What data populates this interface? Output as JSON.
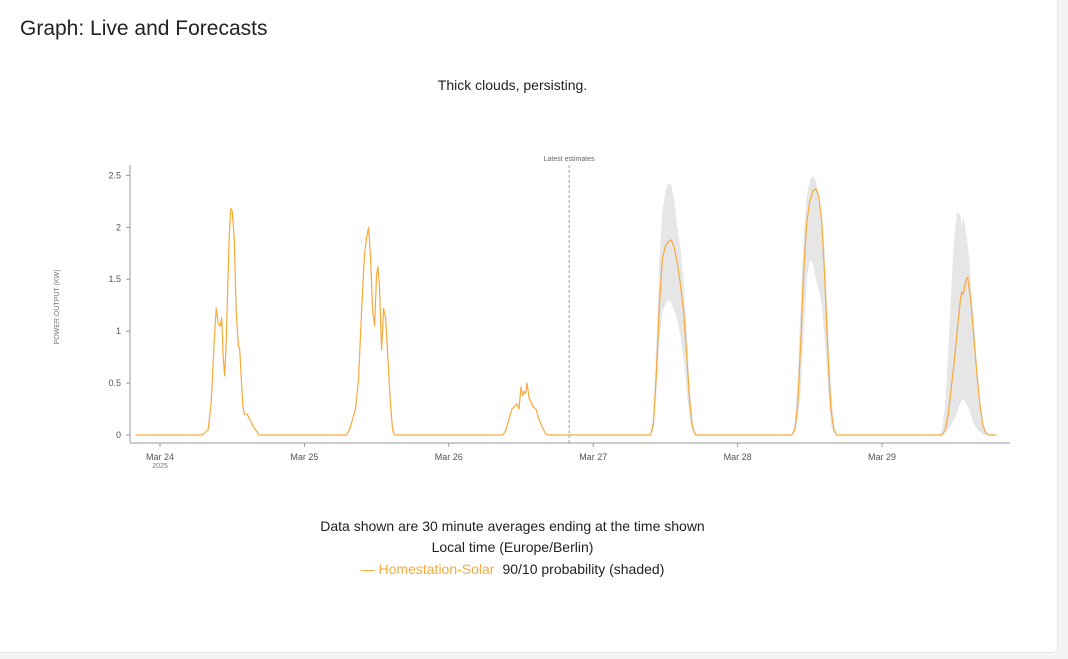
{
  "page": {
    "title": "Graph: Live and Forecasts"
  },
  "chart_data": {
    "type": "line",
    "subtitle": "Thick clouds, persisting.",
    "ylabel": "POWER OUTPUT (KW)",
    "ylim": [
      0,
      2.6
    ],
    "yticks": [
      {
        "value": 0,
        "label": "0"
      },
      {
        "value": 0.5,
        "label": "0.5"
      },
      {
        "value": 1,
        "label": "1"
      },
      {
        "value": 1.5,
        "label": "1.5"
      },
      {
        "value": 2,
        "label": "2"
      },
      {
        "value": 2.5,
        "label": "2.5"
      }
    ],
    "xlim": [
      "2025-03-23T20:00",
      "2025-03-29T23:59"
    ],
    "xticks": [
      {
        "date": "2025-03-24",
        "label": "Mar 24",
        "sublabel": "2025"
      },
      {
        "date": "2025-03-25",
        "label": "Mar 25"
      },
      {
        "date": "2025-03-26",
        "label": "Mar 26"
      },
      {
        "date": "2025-03-27",
        "label": "Mar 27"
      },
      {
        "date": "2025-03-28",
        "label": "Mar 28"
      },
      {
        "date": "2025-03-29",
        "label": "Mar 29"
      }
    ],
    "annotation": {
      "date": "2025-03-26T20:00",
      "label": "Latest estimates"
    },
    "grid": false,
    "series": [
      {
        "name": "Homestation-Solar",
        "color": "#f7a93a",
        "points": [
          [
            "2025-03-23T20:00",
            0
          ],
          [
            "2025-03-24T07:00",
            0
          ],
          [
            "2025-03-24T08:00",
            0.05
          ],
          [
            "2025-03-24T08:30",
            0.3
          ],
          [
            "2025-03-24T09:00",
            0.9
          ],
          [
            "2025-03-24T09:20",
            1.22
          ],
          [
            "2025-03-24T09:40",
            1.07
          ],
          [
            "2025-03-24T10:00",
            1.05
          ],
          [
            "2025-03-24T10:15",
            1.13
          ],
          [
            "2025-03-24T10:30",
            0.75
          ],
          [
            "2025-03-24T10:45",
            0.57
          ],
          [
            "2025-03-24T11:00",
            0.9
          ],
          [
            "2025-03-24T11:30",
            1.9
          ],
          [
            "2025-03-24T11:45",
            2.18
          ],
          [
            "2025-03-24T12:00",
            2.16
          ],
          [
            "2025-03-24T12:20",
            1.9
          ],
          [
            "2025-03-24T12:40",
            1.2
          ],
          [
            "2025-03-24T13:00",
            0.87
          ],
          [
            "2025-03-24T13:15",
            0.82
          ],
          [
            "2025-03-24T13:45",
            0.3
          ],
          [
            "2025-03-24T14:00",
            0.2
          ],
          [
            "2025-03-24T14:30",
            0.2
          ],
          [
            "2025-03-24T15:00",
            0.14
          ],
          [
            "2025-03-24T15:30",
            0.08
          ],
          [
            "2025-03-24T16:30",
            0
          ],
          [
            "2025-03-25T07:00",
            0
          ],
          [
            "2025-03-25T07:30",
            0.05
          ],
          [
            "2025-03-25T08:00",
            0.15
          ],
          [
            "2025-03-25T08:30",
            0.25
          ],
          [
            "2025-03-25T09:00",
            0.55
          ],
          [
            "2025-03-25T09:30",
            1.2
          ],
          [
            "2025-03-25T10:00",
            1.75
          ],
          [
            "2025-03-25T10:20",
            1.9
          ],
          [
            "2025-03-25T10:40",
            2.0
          ],
          [
            "2025-03-25T11:00",
            1.7
          ],
          [
            "2025-03-25T11:20",
            1.2
          ],
          [
            "2025-03-25T11:40",
            1.05
          ],
          [
            "2025-03-25T12:00",
            1.55
          ],
          [
            "2025-03-25T12:15",
            1.62
          ],
          [
            "2025-03-25T12:30",
            1.4
          ],
          [
            "2025-03-25T12:50",
            0.82
          ],
          [
            "2025-03-25T13:10",
            1.22
          ],
          [
            "2025-03-25T13:30",
            1.12
          ],
          [
            "2025-03-25T13:50",
            0.8
          ],
          [
            "2025-03-25T14:15",
            0.35
          ],
          [
            "2025-03-25T14:40",
            0.05
          ],
          [
            "2025-03-25T15:00",
            0
          ],
          [
            "2025-03-26T09:00",
            0
          ],
          [
            "2025-03-26T09:30",
            0.05
          ],
          [
            "2025-03-26T10:00",
            0.15
          ],
          [
            "2025-03-26T10:30",
            0.25
          ],
          [
            "2025-03-26T11:00",
            0.28
          ],
          [
            "2025-03-26T11:20",
            0.3
          ],
          [
            "2025-03-26T11:40",
            0.25
          ],
          [
            "2025-03-26T12:00",
            0.46
          ],
          [
            "2025-03-26T12:15",
            0.38
          ],
          [
            "2025-03-26T12:30",
            0.42
          ],
          [
            "2025-03-26T12:45",
            0.4
          ],
          [
            "2025-03-26T13:00",
            0.5
          ],
          [
            "2025-03-26T13:20",
            0.36
          ],
          [
            "2025-03-26T13:40",
            0.32
          ],
          [
            "2025-03-26T14:00",
            0.27
          ],
          [
            "2025-03-26T14:30",
            0.25
          ],
          [
            "2025-03-26T15:00",
            0.15
          ],
          [
            "2025-03-26T15:30",
            0.08
          ],
          [
            "2025-03-26T16:00",
            0.02
          ],
          [
            "2025-03-26T16:30",
            0
          ],
          [
            "2025-03-27T09:30",
            0
          ],
          [
            "2025-03-27T10:00",
            0.1
          ],
          [
            "2025-03-27T10:30",
            0.6
          ],
          [
            "2025-03-27T11:00",
            1.25
          ],
          [
            "2025-03-27T11:30",
            1.7
          ],
          [
            "2025-03-27T12:00",
            1.82
          ],
          [
            "2025-03-27T12:30",
            1.86
          ],
          [
            "2025-03-27T13:00",
            1.88
          ],
          [
            "2025-03-27T13:30",
            1.8
          ],
          [
            "2025-03-27T14:00",
            1.65
          ],
          [
            "2025-03-27T14:30",
            1.45
          ],
          [
            "2025-03-27T15:00",
            1.2
          ],
          [
            "2025-03-27T15:30",
            0.8
          ],
          [
            "2025-03-27T16:00",
            0.35
          ],
          [
            "2025-03-27T16:30",
            0.08
          ],
          [
            "2025-03-27T17:00",
            0
          ],
          [
            "2025-03-28T09:00",
            0
          ],
          [
            "2025-03-28T09:30",
            0.05
          ],
          [
            "2025-03-28T10:00",
            0.3
          ],
          [
            "2025-03-28T10:30",
            0.9
          ],
          [
            "2025-03-28T11:00",
            1.6
          ],
          [
            "2025-03-28T11:30",
            2.05
          ],
          [
            "2025-03-28T12:00",
            2.25
          ],
          [
            "2025-03-28T12:30",
            2.35
          ],
          [
            "2025-03-28T13:00",
            2.37
          ],
          [
            "2025-03-28T13:30",
            2.3
          ],
          [
            "2025-03-28T14:00",
            2.05
          ],
          [
            "2025-03-28T14:30",
            1.5
          ],
          [
            "2025-03-28T15:00",
            0.8
          ],
          [
            "2025-03-28T15:30",
            0.25
          ],
          [
            "2025-03-28T16:00",
            0.05
          ],
          [
            "2025-03-28T16:30",
            0
          ],
          [
            "2025-03-29T10:00",
            0
          ],
          [
            "2025-03-29T10:30",
            0.05
          ],
          [
            "2025-03-29T11:00",
            0.2
          ],
          [
            "2025-03-29T11:30",
            0.45
          ],
          [
            "2025-03-29T12:00",
            0.7
          ],
          [
            "2025-03-29T12:30",
            1.0
          ],
          [
            "2025-03-29T13:00",
            1.28
          ],
          [
            "2025-03-29T13:15",
            1.38
          ],
          [
            "2025-03-29T13:30",
            1.35
          ],
          [
            "2025-03-29T14:00",
            1.5
          ],
          [
            "2025-03-29T14:15",
            1.52
          ],
          [
            "2025-03-29T14:45",
            1.3
          ],
          [
            "2025-03-29T15:15",
            0.95
          ],
          [
            "2025-03-29T15:45",
            0.6
          ],
          [
            "2025-03-29T16:15",
            0.3
          ],
          [
            "2025-03-29T16:45",
            0.1
          ],
          [
            "2025-03-29T17:15",
            0.02
          ],
          [
            "2025-03-29T17:45",
            0
          ],
          [
            "2025-03-29T19:00",
            0
          ]
        ]
      }
    ],
    "bands": [
      {
        "name": "90/10 probability (shaded)",
        "color": "#e6e6e6",
        "points": [
          [
            "2025-03-27T09:30",
            0,
            0
          ],
          [
            "2025-03-27T10:00",
            0.05,
            0.2
          ],
          [
            "2025-03-27T10:30",
            0.4,
            0.9
          ],
          [
            "2025-03-27T11:00",
            0.9,
            1.7
          ],
          [
            "2025-03-27T11:30",
            1.2,
            2.15
          ],
          [
            "2025-03-27T12:00",
            1.25,
            2.35
          ],
          [
            "2025-03-27T12:30",
            1.3,
            2.43
          ],
          [
            "2025-03-27T13:00",
            1.27,
            2.4
          ],
          [
            "2025-03-27T13:30",
            1.2,
            2.25
          ],
          [
            "2025-03-27T14:00",
            1.1,
            2.0
          ],
          [
            "2025-03-27T14:30",
            0.95,
            1.8
          ],
          [
            "2025-03-27T15:00",
            0.75,
            1.5
          ],
          [
            "2025-03-27T15:30",
            0.45,
            1.05
          ],
          [
            "2025-03-27T16:00",
            0.15,
            0.5
          ],
          [
            "2025-03-27T16:30",
            0.03,
            0.12
          ],
          [
            "2025-03-27T17:00",
            0,
            0
          ],
          [
            "2025-03-28T09:00",
            0,
            0
          ],
          [
            "2025-03-28T09:30",
            0.03,
            0.1
          ],
          [
            "2025-03-28T10:00",
            0.15,
            0.55
          ],
          [
            "2025-03-28T10:30",
            0.45,
            1.3
          ],
          [
            "2025-03-28T11:00",
            1.0,
            1.95
          ],
          [
            "2025-03-28T11:30",
            1.5,
            2.3
          ],
          [
            "2025-03-28T12:00",
            1.68,
            2.45
          ],
          [
            "2025-03-28T12:30",
            1.65,
            2.5
          ],
          [
            "2025-03-28T13:00",
            1.5,
            2.45
          ],
          [
            "2025-03-28T13:30",
            1.4,
            2.3
          ],
          [
            "2025-03-28T14:00",
            1.25,
            2.1
          ],
          [
            "2025-03-28T14:30",
            0.9,
            1.75
          ],
          [
            "2025-03-28T15:00",
            0.45,
            1.1
          ],
          [
            "2025-03-28T15:30",
            0.1,
            0.45
          ],
          [
            "2025-03-28T16:00",
            0.02,
            0.1
          ],
          [
            "2025-03-28T16:30",
            0,
            0
          ],
          [
            "2025-03-29T09:30",
            0,
            0
          ],
          [
            "2025-03-29T10:00",
            0,
            0.05
          ],
          [
            "2025-03-29T10:30",
            0.02,
            0.3
          ],
          [
            "2025-03-29T11:00",
            0.05,
            0.8
          ],
          [
            "2025-03-29T11:30",
            0.1,
            1.4
          ],
          [
            "2025-03-29T12:00",
            0.15,
            1.9
          ],
          [
            "2025-03-29T12:30",
            0.22,
            2.15
          ],
          [
            "2025-03-29T13:00",
            0.3,
            2.12
          ],
          [
            "2025-03-29T13:15",
            0.33,
            2.0
          ],
          [
            "2025-03-29T13:30",
            0.35,
            2.1
          ],
          [
            "2025-03-29T14:00",
            0.3,
            1.95
          ],
          [
            "2025-03-29T14:30",
            0.25,
            1.7
          ],
          [
            "2025-03-29T15:00",
            0.15,
            1.3
          ],
          [
            "2025-03-29T15:30",
            0.08,
            0.9
          ],
          [
            "2025-03-29T16:00",
            0.04,
            0.5
          ],
          [
            "2025-03-29T16:30",
            0.02,
            0.2
          ],
          [
            "2025-03-29T17:00",
            0,
            0.05
          ],
          [
            "2025-03-29T17:30",
            0,
            0
          ]
        ]
      }
    ]
  },
  "footer": {
    "caption_line1": "Data shown are 30 minute averages ending at the time shown",
    "caption_line2": "Local time (Europe/Berlin)",
    "legend_series": "— Homestation-Solar",
    "legend_band": "90/10 probability (shaded)"
  }
}
